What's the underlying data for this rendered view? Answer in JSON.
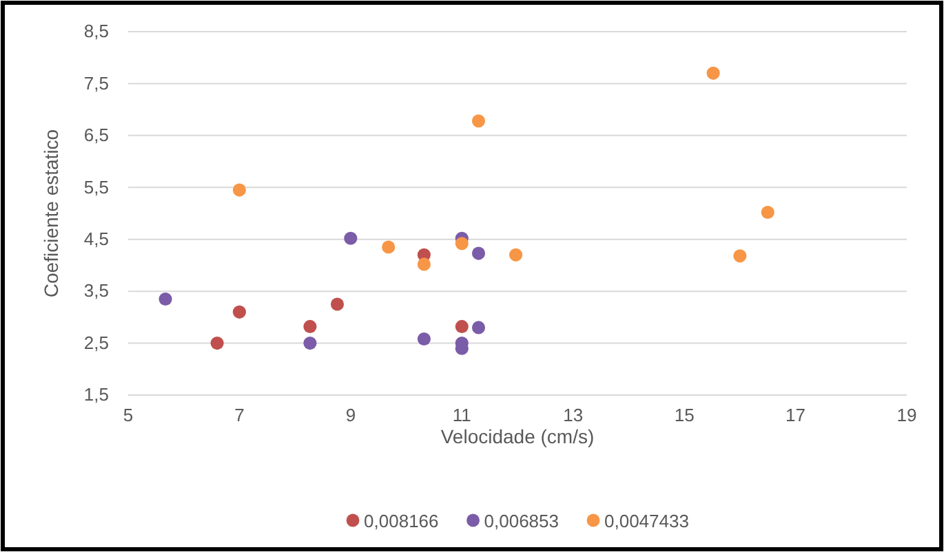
{
  "chart_data": {
    "type": "scatter",
    "xlabel": "Velocidade (cm/s)",
    "ylabel": "Coeficiente estatico",
    "xlim": [
      5,
      19
    ],
    "xticks": [
      5,
      7,
      9,
      11,
      13,
      15,
      17,
      19
    ],
    "ylim": [
      1.5,
      8.5
    ],
    "yticks": [
      {
        "value": 1.5,
        "label": "1,5"
      },
      {
        "value": 2.5,
        "label": "2,5"
      },
      {
        "value": 3.5,
        "label": "3,5"
      },
      {
        "value": 4.5,
        "label": "4,5"
      },
      {
        "value": 5.5,
        "label": "5,5"
      },
      {
        "value": 6.5,
        "label": "6,5"
      },
      {
        "value": 7.5,
        "label": "7,5"
      },
      {
        "value": 8.5,
        "label": "8,5"
      }
    ],
    "grid": "y",
    "legend": "bottom",
    "marker": "circle",
    "series": [
      {
        "name": "0,008166",
        "color": "#c0504d",
        "x": [
          6.6,
          7.0,
          8.27,
          8.76,
          10.32,
          11.0
        ],
        "values": [
          2.5,
          3.1,
          2.82,
          3.25,
          4.2,
          2.82
        ]
      },
      {
        "name": "0,006853",
        "color": "#7b5ca8",
        "x": [
          5.67,
          8.27,
          9.0,
          10.32,
          11.0,
          11.0,
          11.0,
          11.3,
          11.3
        ],
        "values": [
          3.35,
          2.5,
          4.52,
          2.58,
          4.52,
          2.5,
          2.4,
          4.23,
          2.8
        ]
      },
      {
        "name": "0,0047433",
        "color": "#f79646",
        "x": [
          7.0,
          9.68,
          10.32,
          11.0,
          11.3,
          11.97,
          15.52,
          16.0,
          16.5
        ],
        "values": [
          5.45,
          4.35,
          4.02,
          4.42,
          6.78,
          4.2,
          7.7,
          4.18,
          5.02
        ]
      }
    ]
  }
}
